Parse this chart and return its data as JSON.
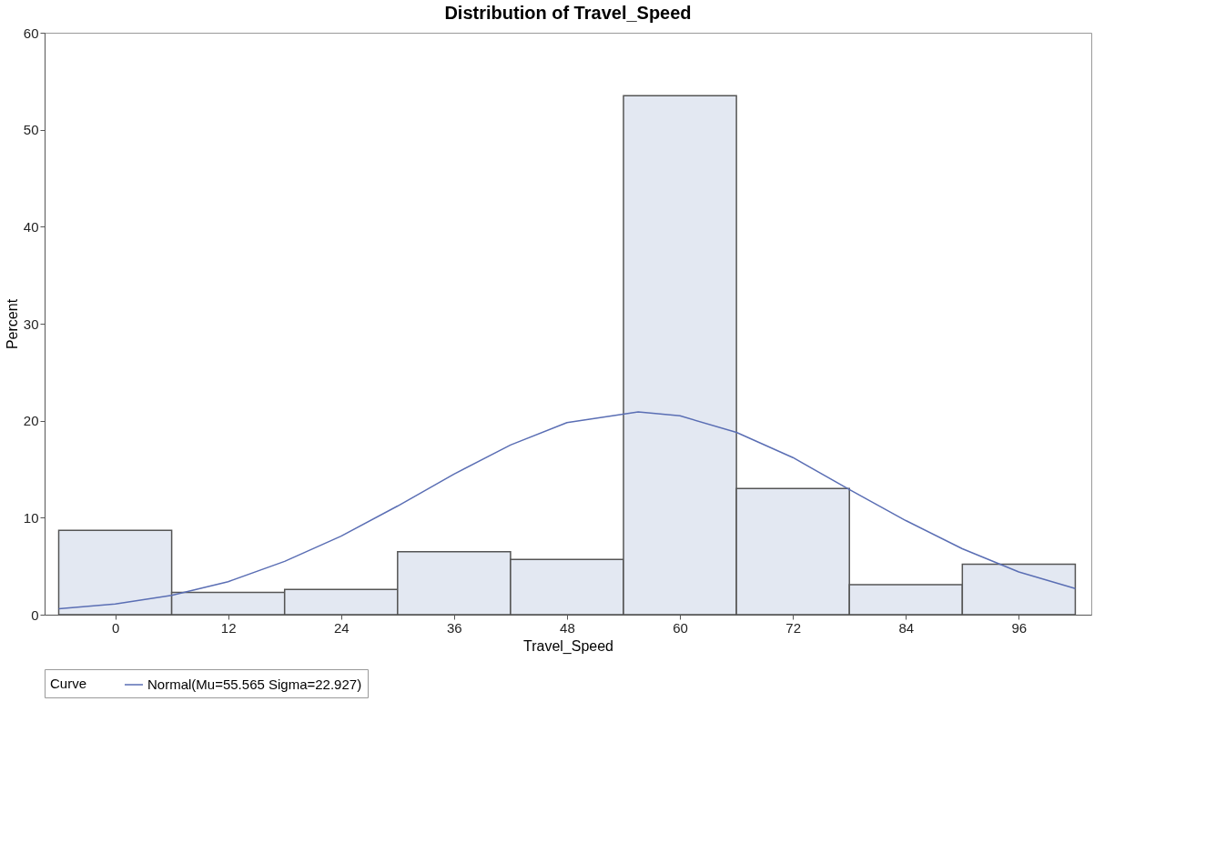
{
  "chart_data": {
    "type": "histogram",
    "title": "Distribution of Travel_Speed",
    "xlabel": "Travel_Speed",
    "ylabel": "Percent",
    "legend_title": "Curve",
    "bins": [
      -6,
      6,
      18,
      30,
      42,
      54,
      66,
      78,
      90,
      102
    ],
    "values": [
      8.7,
      2.3,
      2.6,
      6.5,
      5.7,
      53.5,
      13.0,
      3.1,
      5.2
    ],
    "color": "#e3e8f2",
    "series": [
      {
        "type": "line",
        "name": "Normal(Mu=55.565 Sigma=22.927)",
        "color": "#5a6eb4",
        "x": [
          -6,
          0,
          6,
          12,
          18,
          24,
          30,
          36,
          42,
          48,
          55.565,
          60,
          66,
          72,
          78,
          84,
          90,
          96,
          102
        ],
        "values": [
          0.6,
          1.1,
          2.0,
          3.4,
          5.5,
          8.1,
          11.2,
          14.5,
          17.5,
          19.8,
          20.9,
          20.5,
          18.8,
          16.2,
          12.9,
          9.7,
          6.8,
          4.4,
          2.7
        ]
      }
    ],
    "xlim": [
      -7.5,
      103.7
    ],
    "xticks": [
      0,
      12,
      24,
      36,
      48,
      60,
      72,
      84,
      96
    ],
    "ylim": [
      0,
      60
    ],
    "yticks": [
      0,
      10,
      20,
      30,
      40,
      50,
      60
    ],
    "grid": false,
    "legend": "bottom"
  }
}
